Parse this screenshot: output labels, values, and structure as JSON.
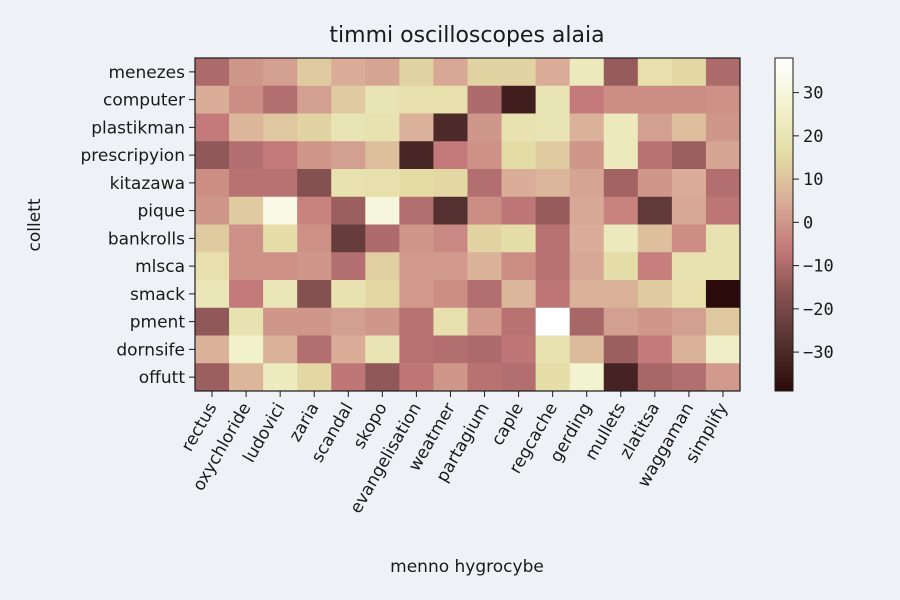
{
  "chart_data": {
    "type": "heatmap",
    "title": "timmi oscilloscopes alaia",
    "xlabel": "menno hygrocybe",
    "ylabel": "collett",
    "x_categories": [
      "rectus",
      "oxychloride",
      "ludovici",
      "zaria",
      "scandal",
      "skopo",
      "evangelisation",
      "weatmer",
      "partagium",
      "caple",
      "regcache",
      "gerding",
      "mullets",
      "zlatitsa",
      "waggaman",
      "simplify"
    ],
    "y_categories": [
      "menezes",
      "computer",
      "plastikman",
      "prescripyion",
      "kitazawa",
      "pique",
      "bankrolls",
      "mlsca",
      "smack",
      "pment",
      "dornsife",
      "offutt"
    ],
    "values": [
      [
        -10,
        0,
        2,
        12,
        5,
        3,
        14,
        4,
        14,
        14,
        5,
        22,
        -14,
        18,
        15,
        -10
      ],
      [
        5,
        -2,
        -9,
        2,
        12,
        20,
        18,
        18,
        -10,
        -33,
        20,
        -6,
        -2,
        -2,
        -2,
        -1
      ],
      [
        -6,
        7,
        11,
        14,
        20,
        19,
        6,
        -30,
        0,
        19,
        20,
        6,
        22,
        2,
        9,
        0
      ],
      [
        -15,
        -9,
        -6,
        0,
        2,
        9,
        -31,
        -6,
        -1,
        16,
        12,
        0,
        22,
        -8,
        -13,
        3
      ],
      [
        -2,
        -8,
        -8,
        -17,
        19,
        18,
        16,
        15,
        -9,
        5,
        7,
        3,
        -12,
        0,
        5,
        -9
      ],
      [
        0,
        12,
        32,
        -4,
        -13,
        30,
        -9,
        -28,
        -2,
        -7,
        -14,
        4,
        -4,
        -25,
        4,
        -7
      ],
      [
        12,
        -1,
        17,
        -1,
        -24,
        -10,
        0,
        -3,
        14,
        17,
        -8,
        5,
        22,
        9,
        -2,
        19
      ],
      [
        18,
        -1,
        -1,
        0,
        -9,
        13,
        1,
        1,
        6,
        -2,
        -8,
        4,
        17,
        -5,
        19,
        19
      ],
      [
        21,
        -6,
        21,
        -17,
        19,
        15,
        1,
        -2,
        -9,
        7,
        -7,
        6,
        6,
        12,
        18,
        -39
      ],
      [
        -15,
        19,
        0,
        0,
        2,
        0,
        -8,
        18,
        1,
        -8,
        38,
        -11,
        2,
        0,
        2,
        11
      ],
      [
        6,
        26,
        6,
        -9,
        5,
        20,
        -8,
        -9,
        -10,
        -7,
        19,
        8,
        -13,
        -6,
        6,
        25
      ],
      [
        -13,
        7,
        23,
        15,
        -7,
        -15,
        -7,
        0,
        -8,
        -9,
        17,
        27,
        -32,
        -11,
        -9,
        1
      ]
    ],
    "vmin": -39,
    "vmax": 38,
    "colorbar_ticks": [
      "30",
      "20",
      "10",
      "0",
      "−10",
      "−20",
      "−30"
    ],
    "colorbar_tick_values": [
      30,
      20,
      10,
      0,
      -10,
      -20,
      -30
    ],
    "colormap": [
      "#2a0a0a",
      "#543131",
      "#855050",
      "#c47a7a",
      "#d9ad98",
      "#e4dca5",
      "#f2f3cf",
      "#ffffff"
    ],
    "grid": false,
    "legend": "colorbar-right"
  }
}
